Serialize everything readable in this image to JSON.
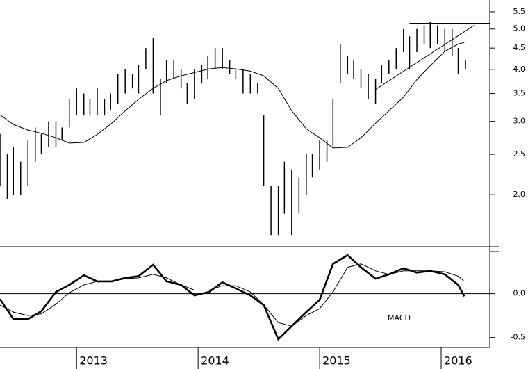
{
  "chart_data": [
    {
      "type": "ohlc",
      "log_scale": true,
      "color": "#000000",
      "xlim": [
        2012.37,
        2016.4
      ],
      "ylim": [
        1.5,
        5.87
      ],
      "yticks": [
        5.5,
        {
          "value": 5,
          "label": "5.0"
        },
        4.5,
        {
          "value": 4,
          "label": "4.0"
        },
        3.5,
        {
          "value": 3,
          "label": "3.0"
        },
        2.5,
        {
          "value": 2,
          "label": "2.0"
        }
      ],
      "x": [
        2012.37,
        2012.43,
        2012.48,
        2012.54,
        2012.6,
        2012.66,
        2012.71,
        2012.77,
        2012.83,
        2012.88,
        2012.94,
        2013.0,
        2013.06,
        2013.11,
        2013.17,
        2013.23,
        2013.28,
        2013.34,
        2013.4,
        2013.46,
        2013.51,
        2013.57,
        2013.63,
        2013.69,
        2013.74,
        2013.8,
        2013.86,
        2013.91,
        2013.97,
        2014.03,
        2014.08,
        2014.14,
        2014.2,
        2014.26,
        2014.31,
        2014.37,
        2014.43,
        2014.49,
        2014.54,
        2014.6,
        2014.66,
        2014.71,
        2014.77,
        2014.83,
        2014.89,
        2014.94,
        2015.0,
        2015.06,
        2015.11,
        2015.17,
        2015.23,
        2015.28,
        2015.34,
        2015.4,
        2015.46,
        2015.51,
        2015.57,
        2015.63,
        2015.69,
        2015.74,
        2015.8,
        2015.86,
        2015.91,
        2015.97,
        2016.03,
        2016.09,
        2016.14,
        2016.2
      ],
      "high": [
        2.8,
        2.5,
        2.6,
        2.4,
        2.7,
        2.9,
        2.8,
        3.0,
        3.0,
        2.9,
        3.4,
        3.6,
        3.5,
        3.4,
        3.6,
        3.4,
        3.5,
        3.9,
        4.0,
        3.9,
        4.1,
        4.5,
        4.75,
        3.8,
        4.2,
        4.2,
        4.0,
        3.7,
        4.0,
        4.1,
        4.3,
        4.5,
        4.5,
        4.2,
        4.0,
        4.0,
        3.9,
        3.7,
        3.1,
        2.1,
        2.1,
        2.4,
        2.3,
        2.2,
        2.5,
        2.5,
        2.7,
        2.7,
        3.4,
        4.6,
        4.3,
        4.2,
        4.0,
        3.9,
        3.8,
        4.1,
        4.2,
        4.5,
        5.0,
        4.8,
        5.0,
        5.1,
        5.2,
        5.1,
        5.0,
        5.0,
        4.5,
        4.2
      ],
      "low": [
        2.1,
        1.95,
        2.0,
        2.0,
        2.1,
        2.4,
        2.5,
        2.6,
        2.6,
        2.7,
        2.9,
        3.1,
        3.1,
        3.1,
        3.1,
        3.1,
        3.2,
        3.3,
        3.5,
        3.6,
        3.5,
        4.0,
        3.5,
        3.1,
        3.7,
        3.8,
        3.6,
        3.3,
        3.4,
        3.7,
        3.8,
        4.0,
        4.0,
        3.9,
        3.8,
        3.5,
        3.5,
        3.5,
        2.1,
        1.6,
        1.6,
        1.8,
        1.6,
        1.8,
        2.0,
        2.2,
        2.3,
        2.4,
        2.6,
        3.7,
        3.9,
        3.8,
        3.6,
        3.4,
        3.3,
        3.7,
        3.9,
        4.0,
        4.4,
        4.0,
        4.4,
        4.6,
        4.5,
        4.6,
        4.4,
        4.3,
        3.9,
        4.0
      ],
      "moving_average": {
        "x": [
          2012.37,
          2012.48,
          2012.6,
          2012.71,
          2012.83,
          2012.94,
          2013.06,
          2013.17,
          2013.29,
          2013.4,
          2013.51,
          2013.63,
          2013.74,
          2013.86,
          2013.97,
          2014.09,
          2014.2,
          2014.31,
          2014.43,
          2014.54,
          2014.66,
          2014.77,
          2014.89,
          2015.0,
          2015.11,
          2015.23,
          2015.34,
          2015.46,
          2015.57,
          2015.69,
          2015.8,
          2015.91,
          2016.03,
          2016.14,
          2016.19
        ],
        "values": [
          3.11,
          2.95,
          2.86,
          2.81,
          2.74,
          2.66,
          2.67,
          2.79,
          2.97,
          3.18,
          3.39,
          3.6,
          3.76,
          3.86,
          3.93,
          4.01,
          4.04,
          4.01,
          3.96,
          3.86,
          3.6,
          3.18,
          2.88,
          2.74,
          2.59,
          2.6,
          2.74,
          2.97,
          3.18,
          3.43,
          3.78,
          4.08,
          4.42,
          4.6,
          4.64
        ]
      },
      "trendlines": [
        {
          "x": [
            2015.74,
            2016.4
          ],
          "values": [
            5.16,
            5.16
          ]
        },
        {
          "x": [
            2015.46,
            2016.27
          ],
          "values": [
            3.58,
            5.1
          ]
        }
      ]
    },
    {
      "type": "line",
      "xlim": [
        2012.37,
        2016.4
      ],
      "ylim": [
        -0.59,
        0.52
      ],
      "yticks": [
        {
          "value": 0,
          "label": "0.0"
        },
        -0.5
      ],
      "xticks": [
        2013,
        2014,
        2015,
        2016
      ],
      "x": [
        2012.37,
        2012.48,
        2012.6,
        2012.71,
        2012.83,
        2012.94,
        2013.06,
        2013.17,
        2013.29,
        2013.4,
        2013.51,
        2013.63,
        2013.74,
        2013.86,
        2013.97,
        2014.09,
        2014.2,
        2014.31,
        2014.43,
        2014.54,
        2014.66,
        2014.77,
        2014.89,
        2015.0,
        2015.11,
        2015.23,
        2015.34,
        2015.46,
        2015.57,
        2015.69,
        2015.8,
        2015.91,
        2016.03,
        2016.14,
        2016.19
      ],
      "series": [
        {
          "name": "MACD",
          "color": "#000000",
          "values": [
            -0.06,
            -0.29,
            -0.29,
            -0.2,
            0.02,
            0.1,
            0.21,
            0.14,
            0.14,
            0.18,
            0.2,
            0.33,
            0.14,
            0.1,
            -0.02,
            0.02,
            0.13,
            0.06,
            -0.02,
            -0.13,
            -0.52,
            -0.37,
            -0.21,
            -0.07,
            0.34,
            0.44,
            0.3,
            0.17,
            0.22,
            0.29,
            0.24,
            0.26,
            0.22,
            0.1,
            -0.03
          ]
        },
        {
          "color": "#000000",
          "values": [
            -0.13,
            -0.21,
            -0.25,
            -0.23,
            -0.12,
            0.01,
            0.1,
            0.14,
            0.14,
            0.17,
            0.18,
            0.22,
            0.18,
            0.1,
            0.04,
            0.04,
            0.09,
            0.09,
            0.02,
            -0.13,
            -0.33,
            -0.37,
            -0.25,
            -0.17,
            0.02,
            0.3,
            0.34,
            0.26,
            0.22,
            0.26,
            0.26,
            0.26,
            0.25,
            0.2,
            0.14
          ]
        }
      ]
    }
  ]
}
